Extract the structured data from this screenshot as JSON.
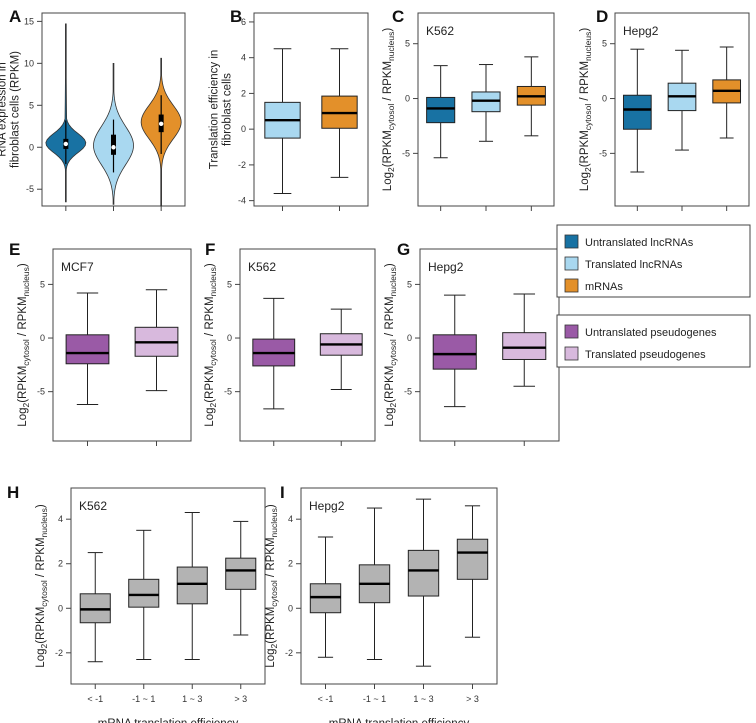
{
  "colors": {
    "untranslated_lnc": "#1872a3",
    "translated_lnc": "#a9d8f0",
    "mrna": "#e3902a",
    "untranslated_pseudo": "#9a5aa6",
    "translated_pseudo": "#d8b9dd",
    "mrna_te": "#b3b3b3"
  },
  "legend_lnc": [
    {
      "label": "Untranslated lncRNAs",
      "color_key": "untranslated_lnc"
    },
    {
      "label": "Translated lncRNAs",
      "color_key": "translated_lnc"
    },
    {
      "label": "mRNAs",
      "color_key": "mrna"
    }
  ],
  "legend_pseudo": [
    {
      "label": "Untranslated pseudogenes",
      "color_key": "untranslated_pseudo"
    },
    {
      "label": "Translated pseudogenes",
      "color_key": "translated_pseudo"
    }
  ],
  "ylabel_log": {
    "prefix": "Log",
    "log_sub": "2",
    "open": "(RPKM",
    "sub1": "cytosol",
    "mid": " / RPKM",
    "sub2": "nucleus",
    "close": ")"
  },
  "chart_data": [
    {
      "panel": "A",
      "type": "violin",
      "title": "",
      "ylabel_lines": [
        "RNA expression in",
        "fibroblast cells (RPKM)"
      ],
      "ylim": [
        -7,
        16
      ],
      "yticks": [
        -5,
        0,
        5,
        10,
        15
      ],
      "series": [
        {
          "name": "Untranslated lncRNAs",
          "color_key": "untranslated_lnc",
          "min": -6.5,
          "max": 14.7,
          "q1": -0.2,
          "median": 0.4,
          "q3": 1.0,
          "whisker_low": -2.0,
          "whisker_high": 3.2,
          "mode": 0.5
        },
        {
          "name": "Translated lncRNAs",
          "color_key": "translated_lnc",
          "min": -6.8,
          "max": 10.0,
          "q1": -0.9,
          "median": 0.0,
          "q3": 1.5,
          "whisker_low": -3.0,
          "whisker_high": 3.3,
          "mode": 0.2
        },
        {
          "name": "mRNAs",
          "color_key": "mrna",
          "min": -7.0,
          "max": 10.6,
          "q1": 1.8,
          "median": 2.8,
          "q3": 3.9,
          "whisker_low": -0.8,
          "whisker_high": 6.2,
          "mode": 3.0
        }
      ]
    },
    {
      "panel": "B",
      "type": "box",
      "title": "",
      "ylabel_lines": [
        "Translation efficiency in",
        "fibroblast cells"
      ],
      "ylim": [
        -4.3,
        6.5
      ],
      "yticks": [
        -4,
        -2,
        0,
        2,
        4,
        6
      ],
      "series": [
        {
          "name": "Translated lncRNAs",
          "color_key": "translated_lnc",
          "whisker_low": -3.6,
          "q1": -0.5,
          "median": 0.5,
          "q3": 1.5,
          "whisker_high": 4.5
        },
        {
          "name": "mRNAs",
          "color_key": "mrna",
          "whisker_low": -2.7,
          "q1": 0.05,
          "median": 0.9,
          "q3": 1.85,
          "whisker_high": 4.5
        }
      ]
    },
    {
      "panel": "C",
      "type": "box",
      "title": "K562",
      "ylabel": "log",
      "ylim": [
        -9.8,
        7.8
      ],
      "yticks": [
        -5,
        0,
        5
      ],
      "series": [
        {
          "name": "Untranslated lncRNAs",
          "color_key": "untranslated_lnc",
          "whisker_low": -5.4,
          "q1": -2.2,
          "median": -0.9,
          "q3": 0.1,
          "whisker_high": 3.0
        },
        {
          "name": "Translated lncRNAs",
          "color_key": "translated_lnc",
          "whisker_low": -3.9,
          "q1": -1.2,
          "median": -0.2,
          "q3": 0.6,
          "whisker_high": 3.1
        },
        {
          "name": "mRNAs",
          "color_key": "mrna",
          "whisker_low": -3.4,
          "q1": -0.6,
          "median": 0.2,
          "q3": 1.1,
          "whisker_high": 3.8
        }
      ]
    },
    {
      "panel": "D",
      "type": "box",
      "title": "Hepg2",
      "ylabel": "log",
      "ylim": [
        -9.8,
        7.8
      ],
      "yticks": [
        -5,
        0,
        5
      ],
      "series": [
        {
          "name": "Untranslated lncRNAs",
          "color_key": "untranslated_lnc",
          "whisker_low": -6.7,
          "q1": -2.8,
          "median": -1.0,
          "q3": 0.3,
          "whisker_high": 4.5
        },
        {
          "name": "Translated lncRNAs",
          "color_key": "translated_lnc",
          "whisker_low": -4.7,
          "q1": -1.1,
          "median": 0.2,
          "q3": 1.4,
          "whisker_high": 4.4
        },
        {
          "name": "mRNAs",
          "color_key": "mrna",
          "whisker_low": -3.6,
          "q1": -0.4,
          "median": 0.7,
          "q3": 1.7,
          "whisker_high": 4.7
        }
      ]
    },
    {
      "panel": "E",
      "type": "box",
      "title": "MCF7",
      "ylabel": "log",
      "ylim": [
        -9.6,
        8.3
      ],
      "yticks": [
        -5,
        0,
        5
      ],
      "series": [
        {
          "name": "Untranslated pseudogenes",
          "color_key": "untranslated_pseudo",
          "whisker_low": -6.2,
          "q1": -2.4,
          "median": -1.4,
          "q3": 0.3,
          "whisker_high": 4.2
        },
        {
          "name": "Translated pseudogenes",
          "color_key": "translated_pseudo",
          "whisker_low": -4.9,
          "q1": -1.7,
          "median": -0.4,
          "q3": 1.0,
          "whisker_high": 4.5
        }
      ]
    },
    {
      "panel": "F",
      "type": "box",
      "title": "K562",
      "ylabel": "log",
      "ylim": [
        -9.6,
        8.3
      ],
      "yticks": [
        -5,
        0,
        5
      ],
      "series": [
        {
          "name": "Untranslated pseudogenes",
          "color_key": "untranslated_pseudo",
          "whisker_low": -6.6,
          "q1": -2.6,
          "median": -1.4,
          "q3": -0.1,
          "whisker_high": 3.7
        },
        {
          "name": "Translated pseudogenes",
          "color_key": "translated_pseudo",
          "whisker_low": -4.8,
          "q1": -1.6,
          "median": -0.6,
          "q3": 0.4,
          "whisker_high": 2.7
        }
      ]
    },
    {
      "panel": "G",
      "type": "box",
      "title": "Hepg2",
      "ylabel": "log",
      "ylim": [
        -9.6,
        8.3
      ],
      "yticks": [
        -5,
        0,
        5
      ],
      "series": [
        {
          "name": "Untranslated pseudogenes",
          "color_key": "untranslated_pseudo",
          "whisker_low": -6.4,
          "q1": -2.9,
          "median": -1.5,
          "q3": 0.3,
          "whisker_high": 4.0
        },
        {
          "name": "Translated pseudogenes",
          "color_key": "translated_pseudo",
          "whisker_low": -4.5,
          "q1": -2.0,
          "median": -0.9,
          "q3": 0.5,
          "whisker_high": 4.1
        }
      ]
    },
    {
      "panel": "H",
      "type": "box",
      "title": "K562",
      "ylabel": "log",
      "xlabel": "mRNA translation efficiency",
      "categories": [
        "< -1",
        "-1 ~ 1",
        "1 ~ 3",
        "> 3"
      ],
      "ylim": [
        -3.4,
        5.4
      ],
      "yticks": [
        -2,
        0,
        2,
        4
      ],
      "series": [
        {
          "name": "< -1",
          "color_key": "mrna_te",
          "whisker_low": -2.4,
          "q1": -0.65,
          "median": -0.05,
          "q3": 0.65,
          "whisker_high": 2.5
        },
        {
          "name": "-1 ~ 1",
          "color_key": "mrna_te",
          "whisker_low": -2.3,
          "q1": 0.05,
          "median": 0.6,
          "q3": 1.3,
          "whisker_high": 3.5
        },
        {
          "name": "1 ~ 3",
          "color_key": "mrna_te",
          "whisker_low": -2.3,
          "q1": 0.2,
          "median": 1.1,
          "q3": 1.85,
          "whisker_high": 4.3
        },
        {
          "name": "> 3",
          "color_key": "mrna_te",
          "whisker_low": -1.2,
          "q1": 0.85,
          "median": 1.7,
          "q3": 2.25,
          "whisker_high": 3.9
        }
      ]
    },
    {
      "panel": "I",
      "type": "box",
      "title": "Hepg2",
      "ylabel": "log",
      "xlabel": "mRNA translation efficiency",
      "categories": [
        "< -1",
        "-1 ~ 1",
        "1 ~ 3",
        "> 3"
      ],
      "ylim": [
        -3.4,
        5.4
      ],
      "yticks": [
        -2,
        0,
        2,
        4
      ],
      "series": [
        {
          "name": "< -1",
          "color_key": "mrna_te",
          "whisker_low": -2.2,
          "q1": -0.2,
          "median": 0.5,
          "q3": 1.1,
          "whisker_high": 3.2
        },
        {
          "name": "-1 ~ 1",
          "color_key": "mrna_te",
          "whisker_low": -2.3,
          "q1": 0.25,
          "median": 1.1,
          "q3": 1.95,
          "whisker_high": 4.5
        },
        {
          "name": "1 ~ 3",
          "color_key": "mrna_te",
          "whisker_low": -2.6,
          "q1": 0.55,
          "median": 1.7,
          "q3": 2.6,
          "whisker_high": 4.9
        },
        {
          "name": "> 3",
          "color_key": "mrna_te",
          "whisker_low": -1.3,
          "q1": 1.3,
          "median": 2.5,
          "q3": 3.1,
          "whisker_high": 4.6
        }
      ]
    }
  ]
}
